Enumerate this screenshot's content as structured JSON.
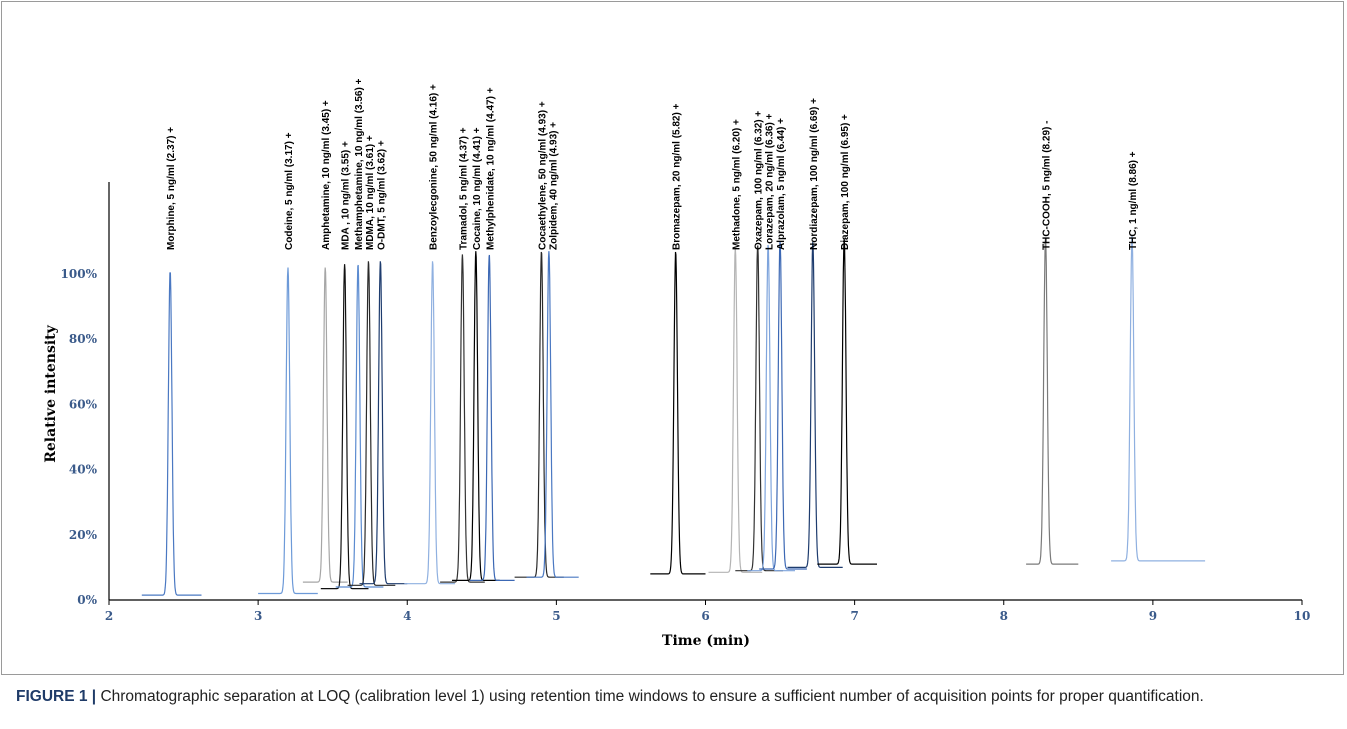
{
  "chart_data": {
    "type": "line",
    "xlabel": "Time (min)",
    "ylabel": "Relative intensity",
    "xlim": [
      2,
      10
    ],
    "ylim": [
      0,
      100
    ],
    "x_ticks": [
      "2",
      "3",
      "4",
      "5",
      "6",
      "7",
      "8",
      "9",
      "10"
    ],
    "y_ticks": [
      "0%",
      "20%",
      "40%",
      "60%",
      "80%",
      "100%"
    ],
    "grid": false,
    "legend": "none",
    "peaks": [
      {
        "label": "Morphine, 5 ng/ml (2.37) +",
        "rt": 2.41,
        "height": 101,
        "base": 1.5,
        "start": 2.22,
        "end": 2.62,
        "color": "#4a78c2"
      },
      {
        "label": "Codeine, 5 ng/ml (3.17) +",
        "rt": 3.2,
        "height": 102,
        "base": 2.0,
        "start": 3.0,
        "end": 3.4,
        "color": "#6d9ad8"
      },
      {
        "label": "Amphetamine, 10 ng/ml (3.45) +",
        "rt": 3.45,
        "height": 102,
        "base": 5.5,
        "start": 3.3,
        "end": 3.6,
        "color": "#a6a6a6"
      },
      {
        "label": "MDA , 10 ng/ml (3.55) +",
        "rt": 3.58,
        "height": 103,
        "base": 3.5,
        "start": 3.42,
        "end": 3.74,
        "color": "#111111"
      },
      {
        "label": "Methamphetamine, 10 ng/ml (3.56) +",
        "rt": 3.67,
        "height": 103,
        "base": 4.0,
        "start": 3.52,
        "end": 3.84,
        "color": "#5b8bd0"
      },
      {
        "label": "MDMA, 10 ng/ml (3.61) +",
        "rt": 3.74,
        "height": 104,
        "base": 4.5,
        "start": 3.6,
        "end": 3.92,
        "color": "#2a2a2a"
      },
      {
        "label": "O-DMT, 5 ng/ml (3.62) +",
        "rt": 3.82,
        "height": 104,
        "base": 5.0,
        "start": 3.68,
        "end": 4.0,
        "color": "#1e3c6e"
      },
      {
        "label": "Benzoylecgonine, 50 ng/ml (4.16) +",
        "rt": 4.17,
        "height": 104,
        "base": 5.0,
        "start": 3.98,
        "end": 4.32,
        "color": "#8fb0e0"
      },
      {
        "label": "Tramadol, 5 ng/ml (4.37) +",
        "rt": 4.37,
        "height": 106,
        "base": 5.5,
        "start": 4.22,
        "end": 4.52,
        "color": "#333333"
      },
      {
        "label": "Cocaine, 10 ng/ml (4.41) +",
        "rt": 4.46,
        "height": 107,
        "base": 6.0,
        "start": 4.3,
        "end": 4.62,
        "color": "#000000"
      },
      {
        "label": "Methylphenidate, 10 ng/ml (4.47) +",
        "rt": 4.55,
        "height": 106,
        "base": 6.0,
        "start": 4.42,
        "end": 4.72,
        "color": "#3c68b4"
      },
      {
        "label": "Cocaethylene, 50 ng/ml (4.93) +",
        "rt": 4.9,
        "height": 107,
        "base": 7.0,
        "start": 4.72,
        "end": 5.05,
        "color": "#2a2a2a"
      },
      {
        "label": "Zolpidem, 40 ng/ml (4.93) +",
        "rt": 4.95,
        "height": 107,
        "base": 7.0,
        "start": 4.8,
        "end": 5.15,
        "color": "#4a78c2"
      },
      {
        "label": "Bromazepam, 20 ng/ml (5.82) +",
        "rt": 5.8,
        "height": 107,
        "base": 8.0,
        "start": 5.63,
        "end": 6.0,
        "color": "#000000"
      },
      {
        "label": "Methadone, 5 ng/ml (6.20) +",
        "rt": 6.2,
        "height": 108,
        "base": 8.5,
        "start": 6.02,
        "end": 6.38,
        "color": "#b4b4b4"
      },
      {
        "label": "Oxazepam, 100 ng/ml (6.32) +",
        "rt": 6.35,
        "height": 109,
        "base": 9.0,
        "start": 6.2,
        "end": 6.52,
        "color": "#333333"
      },
      {
        "label": "Lorazepam, 20 ng/ml (6.36) +",
        "rt": 6.42,
        "height": 109,
        "base": 9.0,
        "start": 6.28,
        "end": 6.6,
        "color": "#7ea4dc"
      },
      {
        "label": "Alprazolam, 5 ng/ml (6.44) +",
        "rt": 6.5,
        "height": 110,
        "base": 9.5,
        "start": 6.36,
        "end": 6.68,
        "color": "#3c68b4"
      },
      {
        "label": "Nordiazepam, 100 ng/ml (6.69) +",
        "rt": 6.72,
        "height": 110,
        "base": 10.0,
        "start": 6.55,
        "end": 6.92,
        "color": "#1e3c6e"
      },
      {
        "label": "Diazepam, 100 ng/ml (6.95) +",
        "rt": 6.93,
        "height": 111,
        "base": 11.0,
        "start": 6.75,
        "end": 7.15,
        "color": "#000000"
      },
      {
        "label": "THC-COOH, 5 ng/ml (8.29) -",
        "rt": 8.28,
        "height": 111,
        "base": 11.0,
        "start": 8.15,
        "end": 8.5,
        "color": "#7a7a7a"
      },
      {
        "label": "THC, 1 ng/ml (8.86) +",
        "rt": 8.86,
        "height": 112,
        "base": 12.0,
        "start": 8.72,
        "end": 9.35,
        "color": "#8fb0e0"
      }
    ]
  },
  "caption": {
    "label": "FIGURE 1 |",
    "text": " Chromatographic separation at LOQ (calibration level 1) using retention time windows to ensure a sufficient number of acquisition points for proper quantification."
  }
}
